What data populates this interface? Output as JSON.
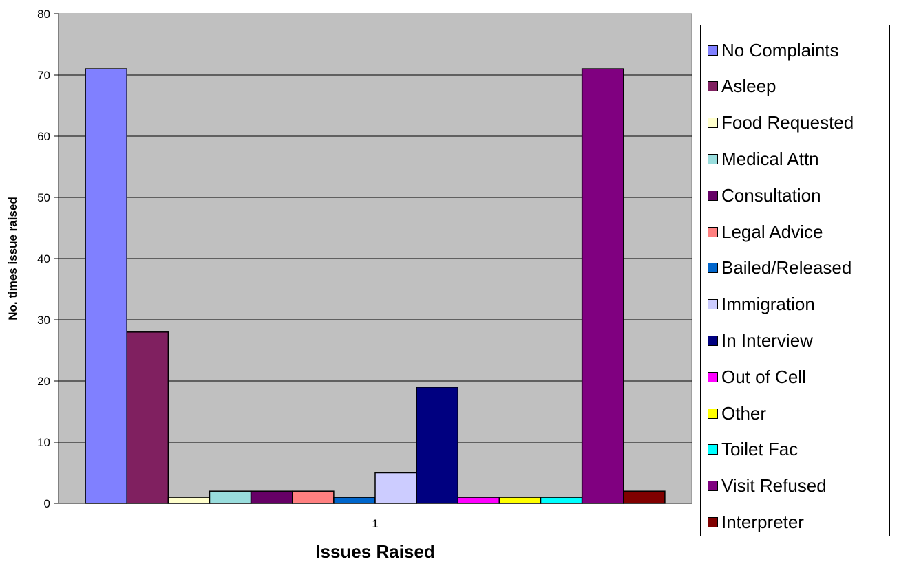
{
  "chart_data": {
    "type": "bar",
    "title": "",
    "xlabel": "Issues Raised",
    "ylabel": "No. times issue raised",
    "categories": [
      "1"
    ],
    "ylim": [
      0,
      80
    ],
    "yticks": [
      0,
      10,
      20,
      30,
      40,
      50,
      60,
      70,
      80
    ],
    "grid": true,
    "legend_position": "right",
    "plot_background": "#C0C0C0",
    "series": [
      {
        "name": "No Complaints",
        "values": [
          71
        ],
        "color": "#8080FF"
      },
      {
        "name": "Asleep",
        "values": [
          28
        ],
        "color": "#802060"
      },
      {
        "name": "Food Requested",
        "values": [
          1
        ],
        "color": "#FFFFCC"
      },
      {
        "name": "Medical Attn",
        "values": [
          2
        ],
        "color": "#99DDDD"
      },
      {
        "name": "Consultation",
        "values": [
          2
        ],
        "color": "#660066"
      },
      {
        "name": "Legal Advice",
        "values": [
          2
        ],
        "color": "#FF8080"
      },
      {
        "name": "Bailed/Released",
        "values": [
          1
        ],
        "color": "#0066CC"
      },
      {
        "name": "Immigration",
        "values": [
          5
        ],
        "color": "#CCCCFF"
      },
      {
        "name": "In Interview",
        "values": [
          19
        ],
        "color": "#000080"
      },
      {
        "name": "Out of Cell",
        "values": [
          1
        ],
        "color": "#FF00FF"
      },
      {
        "name": "Other",
        "values": [
          1
        ],
        "color": "#FFFF00"
      },
      {
        "name": "Toilet Fac",
        "values": [
          1
        ],
        "color": "#00FFFF"
      },
      {
        "name": "Visit Refused",
        "values": [
          71
        ],
        "color": "#800080"
      },
      {
        "name": "Interpreter",
        "values": [
          2
        ],
        "color": "#800000"
      }
    ]
  }
}
